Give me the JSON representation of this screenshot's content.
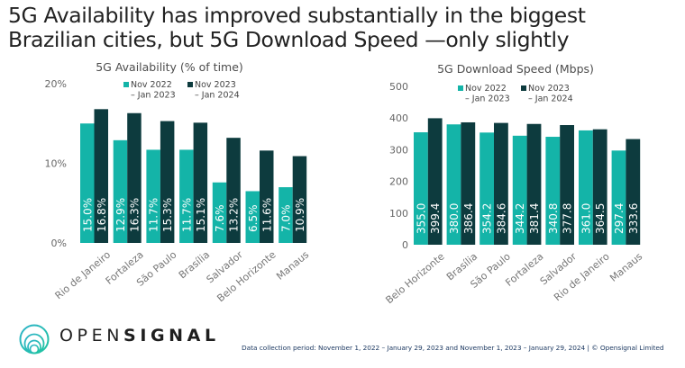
{
  "headline": {
    "line1": "5G Availability has improved substantially in the biggest",
    "line2": "Brazilian cities, but 5G Download Speed —only slightly"
  },
  "colors": {
    "series1": "#14b4a8",
    "series2": "#0d3b3e",
    "axis_text": "#666666",
    "title_text": "#4d4d4d",
    "footnote_text": "#1f3b63"
  },
  "chart_data": [
    {
      "type": "bar",
      "title": "5G Availability (% of time)",
      "xlabel": "",
      "ylabel": "",
      "ylim": [
        0,
        20
      ],
      "yticks": [
        0,
        10,
        20
      ],
      "ytick_labels": [
        "0%",
        "10%",
        "20%"
      ],
      "grid": false,
      "legend_position": "top-center",
      "categories": [
        "Rio de Janeiro",
        "Fortaleza",
        "São Paulo",
        "Brasília",
        "Salvador",
        "Belo Horizonte",
        "Manaus"
      ],
      "series": [
        {
          "name": "Nov 2022 – Jan 2023",
          "legend_line1": "Nov 2022",
          "legend_line2": "– Jan 2023",
          "values": [
            15.0,
            12.9,
            11.7,
            11.7,
            7.6,
            6.5,
            7.0
          ],
          "labels": [
            "15.0%",
            "12.9%",
            "11.7%",
            "11.7%",
            "7.6%",
            "6.5%",
            "7.0%"
          ]
        },
        {
          "name": "Nov 2023 – Jan 2024",
          "legend_line1": "Nov 2023",
          "legend_line2": "– Jan 2024",
          "values": [
            16.8,
            16.3,
            15.3,
            15.1,
            13.2,
            11.6,
            10.9
          ],
          "labels": [
            "16.8%",
            "16.3%",
            "15.3%",
            "15.1%",
            "13.2%",
            "11.6%",
            "10.9%"
          ]
        }
      ]
    },
    {
      "type": "bar",
      "title": "5G Download Speed (Mbps)",
      "xlabel": "",
      "ylabel": "",
      "ylim": [
        0,
        500
      ],
      "yticks": [
        0,
        100,
        200,
        300,
        400,
        500
      ],
      "ytick_labels": [
        "0",
        "100",
        "200",
        "300",
        "400",
        "500"
      ],
      "grid": false,
      "legend_position": "top-center",
      "categories": [
        "Belo Horizonte",
        "Brasília",
        "São Paulo",
        "Fortaleza",
        "Salvador",
        "Rio de Janeiro",
        "Manaus"
      ],
      "series": [
        {
          "name": "Nov 2022 – Jan 2023",
          "legend_line1": "Nov 2022",
          "legend_line2": "– Jan 2023",
          "values": [
            355.0,
            380.0,
            354.2,
            344.2,
            340.8,
            361.0,
            297.4
          ],
          "labels": [
            "355.0",
            "380.0",
            "354.2",
            "344.2",
            "340.8",
            "361.0",
            "297.4"
          ]
        },
        {
          "name": "Nov 2023 – Jan 2024",
          "legend_line1": "Nov 2023",
          "legend_line2": "– Jan 2024",
          "values": [
            399.4,
            386.4,
            384.6,
            381.4,
            377.8,
            364.5,
            333.6
          ],
          "labels": [
            "399.4",
            "386.4",
            "384.6",
            "381.4",
            "377.8",
            "364.5",
            "333.6"
          ]
        }
      ]
    }
  ],
  "brand": {
    "name_light": "OPEN",
    "name_bold": "SIGNAL",
    "logo_icon": "concentric-circles-logo"
  },
  "footnote": "Data collection period: November 1, 2022 – January 29, 2023 and November 1, 2023 – January 29, 2024 | © Opensignal Limited"
}
